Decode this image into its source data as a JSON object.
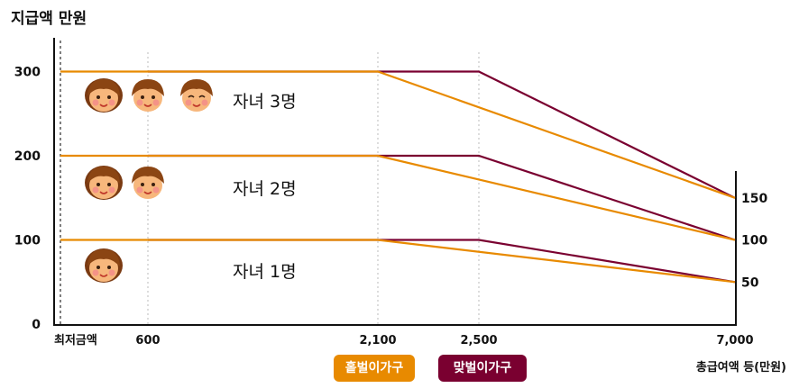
{
  "chart_data": {
    "type": "line",
    "ylabel": "지급액 만원",
    "xlabel": "총급여액 등(만원)",
    "x_ticks": [
      {
        "x": 0,
        "label": "최저금액"
      },
      {
        "x": 600,
        "label": "600"
      },
      {
        "x": 2100,
        "label": "2,100"
      },
      {
        "x": 2500,
        "label": "2,500"
      },
      {
        "x": 7000,
        "label": "7,000"
      }
    ],
    "y_ticks_left": [
      "0",
      "100",
      "200",
      "300"
    ],
    "y_ticks_right": [
      "50",
      "100",
      "150"
    ],
    "ylim": [
      0,
      300
    ],
    "groups": [
      {
        "label": "자녀 3명",
        "children": 3,
        "single": {
          "x": [
            0,
            2100,
            7000
          ],
          "y": [
            300,
            300,
            150
          ]
        },
        "dual": {
          "x": [
            600,
            2500,
            7000
          ],
          "y": [
            300,
            300,
            150
          ]
        }
      },
      {
        "label": "자녀 2명",
        "children": 2,
        "single": {
          "x": [
            0,
            2100,
            7000
          ],
          "y": [
            200,
            200,
            100
          ]
        },
        "dual": {
          "x": [
            600,
            2500,
            7000
          ],
          "y": [
            200,
            200,
            100
          ]
        }
      },
      {
        "label": "자녀 1명",
        "children": 1,
        "single": {
          "x": [
            0,
            2100,
            7000
          ],
          "y": [
            100,
            100,
            50
          ]
        },
        "dual": {
          "x": [
            600,
            2500,
            7000
          ],
          "y": [
            100,
            100,
            50
          ]
        }
      }
    ],
    "series": [
      {
        "name": "홑벌이가구",
        "color": "#e88a00"
      },
      {
        "name": "맞벌이가구",
        "color": "#7a0030"
      }
    ]
  },
  "legend": {
    "single": "홑벌이가구",
    "dual": "맞벌이가구"
  },
  "icons": {
    "child": "child-face-icon"
  }
}
